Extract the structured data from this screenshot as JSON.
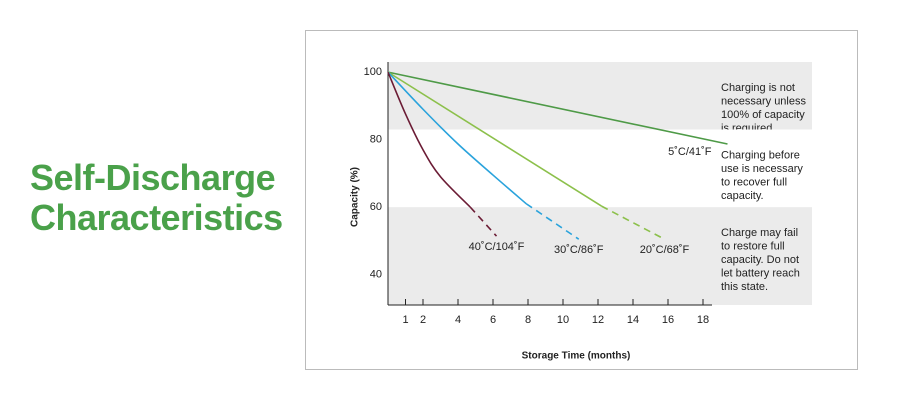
{
  "heading": {
    "lines": [
      "Self-Discharge",
      "Characteristics"
    ]
  },
  "chart_data": {
    "type": "line",
    "x_label": "Storage Time (months)",
    "y_label": "Capacity (%)",
    "xlim": [
      0,
      18
    ],
    "ylim": [
      31,
      103
    ],
    "xticks": [
      1,
      2,
      4,
      6,
      8,
      10,
      12,
      14,
      16,
      18
    ],
    "yticks": [
      40,
      60,
      80,
      100
    ],
    "zones": [
      {
        "from": 83,
        "to": 103,
        "color": "#ebebeb",
        "lines": [
          "Charging is not",
          "necessary unless",
          "100% of capacity",
          "is required."
        ]
      },
      {
        "from": 60,
        "to": 83,
        "color": "#ffffff",
        "lines": [
          "Charging before",
          "use is necessary",
          "to recover full",
          "capacity."
        ]
      },
      {
        "from": 31,
        "to": 60,
        "color": "#ebebeb",
        "lines": [
          "Charge may fail",
          "to restore full",
          "capacity. Do not",
          "let battery reach",
          "this state."
        ]
      }
    ],
    "series": [
      {
        "name": "5˚C/41˚F",
        "color": "#4e9a47",
        "segments": [
          {
            "style": "solid",
            "x": [
              0,
              19.4
            ],
            "values": [
              100,
              78.7
            ]
          }
        ]
      },
      {
        "name": "20˚C/68˚F",
        "color": "#8cc04b",
        "segments": [
          {
            "style": "solid",
            "x": [
              0,
              12.2
            ],
            "values": [
              100,
              60.3
            ]
          },
          {
            "style": "dashed",
            "x": [
              12.2,
              15.8
            ],
            "values": [
              60.3,
              50.5
            ]
          }
        ]
      },
      {
        "name": "30˚C/86˚F",
        "color": "#2aa3dc",
        "segments": [
          {
            "style": "solid",
            "x": [
              0,
              2,
              4,
              6,
              7.9
            ],
            "values": [
              100,
              89,
              78.7,
              69.5,
              61
            ]
          },
          {
            "style": "dashed",
            "x": [
              7.9,
              10.9
            ],
            "values": [
              61,
              50.5
            ]
          }
        ]
      },
      {
        "name": "40˚C/104˚F",
        "color": "#6b1c35",
        "segments": [
          {
            "style": "solid",
            "x": [
              0,
              1,
              2,
              3,
              4.7
            ],
            "values": [
              100,
              87.6,
              77,
              69,
              60
            ]
          },
          {
            "style": "dashed",
            "x": [
              4.7,
              6.2
            ],
            "values": [
              60,
              51.4
            ]
          }
        ]
      }
    ]
  }
}
